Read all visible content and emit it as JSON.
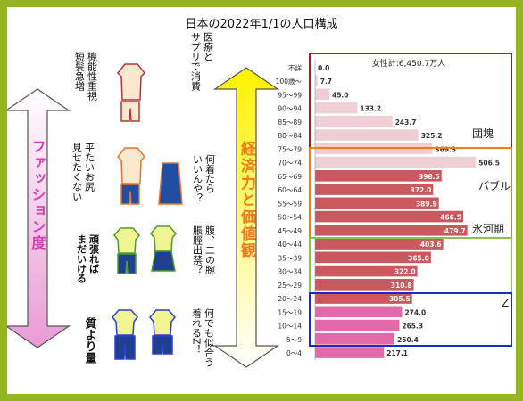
{
  "title": "日本の2022年1/1の人口構成",
  "left_axis_label": "ファッション度",
  "center_axis_label": "経済力と価値観",
  "notes": [
    "機能性重視\n短髪急増",
    "医療と\nサプリで消費",
    "平たいお尻\n見せたくない",
    "何着たら\nいいんや？",
    "頑張れば\nまだいける",
    "腹、二の腕\n脹脛出禁？",
    "質より量",
    "何でも似合う\n着れるZ！"
  ],
  "colors": {
    "frame": "#94b421",
    "bar_light": "#f0cfd4",
    "bar_mid": "#c9585f",
    "bar_pink": "#e26aac",
    "group_dankai": "#a31f27",
    "group_bubble": "#f07c1e",
    "group_hyogaki": "#8bc34a",
    "group_z": "#1c2bc8"
  },
  "chart_data": {
    "type": "bar",
    "orientation": "horizontal",
    "title": "日本の2022年1/1の人口構成",
    "annotation": "女性計:6,450.7万人",
    "categories": [
      "不詳",
      "100歳～",
      "95～99",
      "90～94",
      "85～89",
      "80～84",
      "75～79",
      "70～74",
      "65～69",
      "60～64",
      "55～59",
      "50～54",
      "45～49",
      "40～44",
      "35～39",
      "30～34",
      "25～29",
      "20～24",
      "15～19",
      "10～14",
      "5～9",
      "0～4"
    ],
    "values": [
      0.0,
      7.7,
      45.0,
      133.2,
      243.7,
      325.2,
      369.3,
      506.5,
      398.5,
      372.0,
      389.9,
      466.5,
      479.7,
      403.6,
      365.0,
      322.0,
      310.8,
      305.5,
      274.0,
      265.3,
      250.4,
      217.1
    ],
    "value_labels": [
      "0.0",
      "7.7",
      "45.0",
      "133.2",
      "243.7",
      "325.2",
      "369.3",
      "506.5",
      "398.5",
      "372.0",
      "389.9",
      "466.5",
      "479.7",
      "403.6",
      "365.0",
      "322.0",
      "310.8",
      "305.5",
      "274.0",
      "265.3",
      "250.4",
      "217.1"
    ],
    "xlim": [
      0,
      520
    ],
    "groups": [
      {
        "name": "団塊",
        "from": 1,
        "to": 7
      },
      {
        "name": "バブル",
        "from": 7,
        "to": 13
      },
      {
        "name": "氷河期",
        "from": 13,
        "to": 18
      },
      {
        "name": "Z",
        "from": 18,
        "to": 21
      }
    ]
  }
}
